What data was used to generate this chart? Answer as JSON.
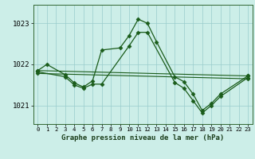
{
  "title": "Graphe pression niveau de la mer (hPa)",
  "bg_color": "#cceee8",
  "grid_color": "#99cccc",
  "line_color": "#1a5c1a",
  "series1_x": [
    0,
    1,
    3,
    4,
    5,
    6,
    7,
    9,
    10,
    11,
    12,
    13,
    15,
    16,
    17,
    18,
    19,
    20,
    23
  ],
  "series1_y": [
    1021.85,
    1022.0,
    1021.75,
    1021.55,
    1021.45,
    1021.6,
    1022.35,
    1022.4,
    1022.7,
    1023.1,
    1023.0,
    1022.55,
    1021.7,
    1021.58,
    1021.28,
    1020.88,
    1021.05,
    1021.28,
    1021.72
  ],
  "series2_x": [
    0,
    3,
    4,
    5,
    6,
    7,
    10,
    11,
    12,
    15,
    16,
    17,
    18,
    19,
    20,
    23
  ],
  "series2_y": [
    1021.82,
    1021.7,
    1021.5,
    1021.42,
    1021.52,
    1021.52,
    1022.45,
    1022.78,
    1022.78,
    1021.56,
    1021.42,
    1021.12,
    1020.82,
    1021.0,
    1021.22,
    1021.68
  ],
  "line1_x": [
    0,
    23
  ],
  "line1_y": [
    1021.85,
    1021.72
  ],
  "line2_x": [
    0,
    23
  ],
  "line2_y": [
    1021.78,
    1021.65
  ],
  "ylim": [
    1020.55,
    1023.45
  ],
  "yticks": [
    1021,
    1022,
    1023
  ],
  "xlim": [
    -0.5,
    23.5
  ],
  "xticks": [
    0,
    1,
    2,
    3,
    4,
    5,
    6,
    7,
    8,
    9,
    10,
    11,
    12,
    13,
    14,
    15,
    16,
    17,
    18,
    19,
    20,
    21,
    22,
    23
  ]
}
